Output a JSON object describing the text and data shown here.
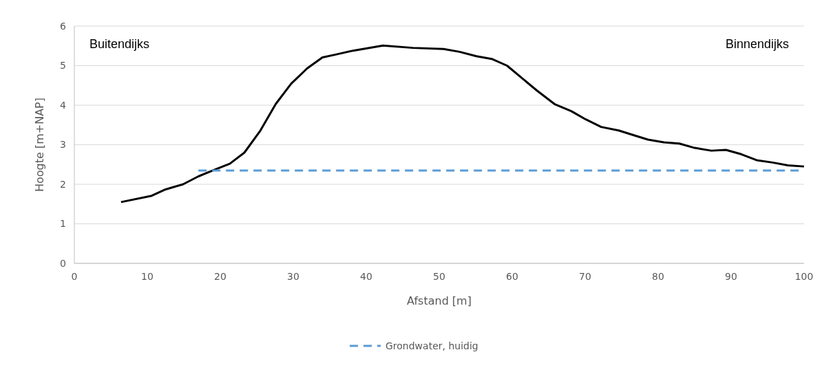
{
  "chart_data": {
    "type": "line",
    "xlabel": "Afstand [m]",
    "ylabel": "Hoogte [m+NAP]",
    "xlim": [
      0,
      100
    ],
    "xticks": [
      0,
      10,
      20,
      30,
      40,
      50,
      60,
      70,
      80,
      90,
      100
    ],
    "ylim": [
      0,
      6
    ],
    "yticks": [
      0,
      1,
      2,
      3,
      4,
      5,
      6
    ],
    "grid": "y",
    "legend": "bottom",
    "annotations": [
      "Buitendijks",
      "Binnendijks"
    ],
    "series": [
      {
        "color": "#000000",
        "line_style": "solid",
        "x": [
          6.4,
          10.6,
          12.5,
          14.9,
          17.0,
          19.5,
          21.3,
          23.3,
          25.5,
          27.6,
          29.7,
          31.9,
          34.0,
          35.8,
          38.2,
          42.3,
          46.4,
          50.6,
          52.8,
          55.1,
          57.2,
          59.3,
          63.4,
          65.8,
          68.1,
          70.1,
          72.2,
          74.6,
          76.7,
          78.6,
          80.8,
          82.9,
          85.0,
          87.3,
          89.3,
          91.4,
          93.5,
          95.7,
          97.8,
          100
        ],
        "values": [
          1.55,
          1.71,
          1.87,
          2.0,
          2.2,
          2.39,
          2.52,
          2.8,
          3.36,
          4.03,
          4.54,
          4.93,
          5.21,
          5.28,
          5.38,
          5.51,
          5.45,
          5.42,
          5.35,
          5.24,
          5.17,
          5.0,
          4.37,
          4.03,
          3.85,
          3.64,
          3.45,
          3.36,
          3.24,
          3.13,
          3.06,
          3.03,
          2.92,
          2.85,
          2.87,
          2.76,
          2.61,
          2.55,
          2.48,
          2.45
        ]
      },
      {
        "name": "Grondwater, huidig",
        "color": "#5b9bd5",
        "line_style": "dashed",
        "x": [
          17,
          100
        ],
        "values": [
          2.35,
          2.35
        ]
      }
    ]
  }
}
